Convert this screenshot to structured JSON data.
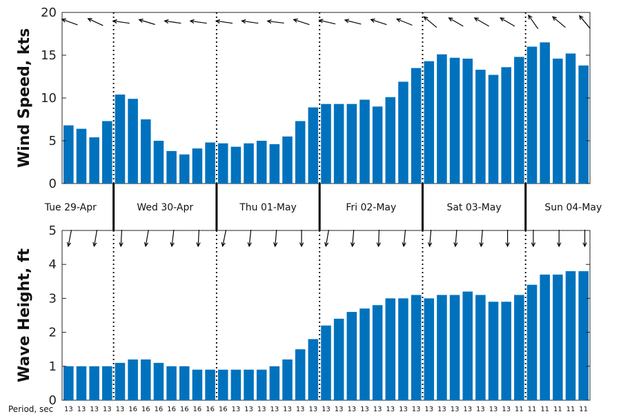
{
  "colors": {
    "bar": "#0072BD",
    "axis": "#222222",
    "grid": "#111111",
    "background": "#ffffff"
  },
  "chart_data": [
    {
      "type": "bar",
      "ylabel": "Wind Speed, kts",
      "ylim": [
        0,
        20
      ],
      "yticks": [
        0,
        5,
        10,
        15,
        20
      ],
      "values": [
        6.8,
        6.4,
        5.4,
        7.3,
        10.4,
        9.9,
        7.5,
        5.0,
        3.8,
        3.4,
        4.1,
        4.8,
        4.7,
        4.3,
        4.7,
        5.0,
        4.6,
        5.5,
        7.3,
        8.9,
        9.3,
        9.3,
        9.3,
        9.8,
        9.0,
        10.1,
        11.9,
        13.5,
        14.3,
        15.1,
        14.7,
        14.6,
        13.3,
        12.7,
        13.6,
        14.8,
        16.0,
        16.5,
        14.6,
        15.2,
        13.8
      ],
      "direction_arrows": "wind",
      "day_labels": [
        "Tue 29-Apr",
        "Wed 30-Apr",
        "Thu 01-May",
        "Fri 02-May",
        "Sat 03-May",
        "Sun 04-May"
      ],
      "grid": false
    },
    {
      "type": "bar",
      "ylabel": "Wave Height, ft",
      "ylim": [
        0,
        5
      ],
      "yticks": [
        0,
        1,
        2,
        3,
        4,
        5
      ],
      "values": [
        1.0,
        1.0,
        1.0,
        1.0,
        1.1,
        1.2,
        1.2,
        1.1,
        1.0,
        1.0,
        0.9,
        0.9,
        0.9,
        0.9,
        0.9,
        0.9,
        1.0,
        1.2,
        1.5,
        1.8,
        2.2,
        2.4,
        2.6,
        2.7,
        2.8,
        3.0,
        3.0,
        3.1,
        3.0,
        3.1,
        3.1,
        3.2,
        3.1,
        2.9,
        2.9,
        3.1,
        3.4,
        3.7,
        3.7,
        3.8,
        3.8
      ],
      "direction_arrows": "wave",
      "period_label": "Period, sec",
      "periods": [
        13,
        13,
        13,
        13,
        13,
        16,
        16,
        16,
        16,
        16,
        16,
        16,
        16,
        13,
        13,
        13,
        13,
        13,
        13,
        13,
        13,
        13,
        13,
        13,
        13,
        13,
        13,
        13,
        13,
        13,
        13,
        13,
        13,
        13,
        13,
        11,
        11,
        11,
        11,
        11,
        11
      ],
      "grid": false
    }
  ]
}
